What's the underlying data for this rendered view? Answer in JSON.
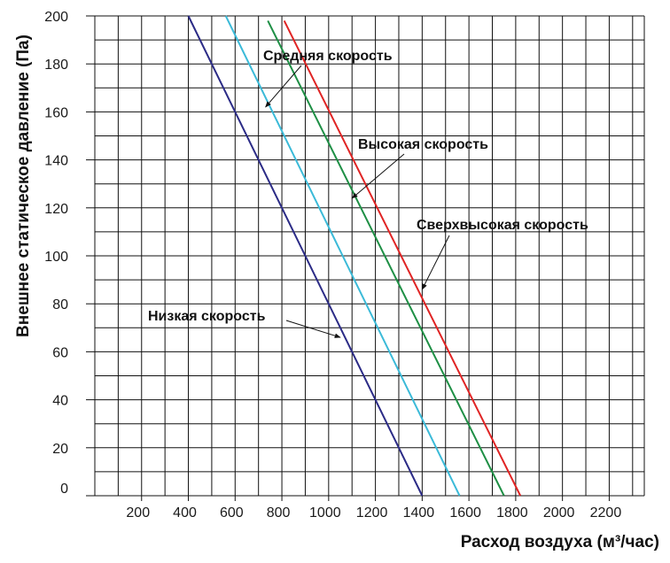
{
  "chart_data": {
    "type": "line",
    "xlabel": "Расход воздуха (м³/час)",
    "ylabel": "Внешнее статическое давление (Па)",
    "xlim": [
      0,
      2350
    ],
    "ylim": [
      0,
      200
    ],
    "xticks": [
      200,
      400,
      600,
      800,
      1000,
      1200,
      1400,
      1600,
      1800,
      2000,
      2200
    ],
    "yticks": [
      0,
      20,
      40,
      60,
      80,
      100,
      120,
      140,
      160,
      180,
      200
    ],
    "grid": true,
    "series": [
      {
        "name": "Низкая скорость",
        "color": "#2b2b86",
        "x": [
          400,
          1400
        ],
        "y": [
          200,
          0
        ]
      },
      {
        "name": "Средняя скорость",
        "color": "#3bbad8",
        "x": [
          560,
          1560
        ],
        "y": [
          200,
          0
        ]
      },
      {
        "name": "Высокая скорость",
        "color": "#1e8f45",
        "x": [
          740,
          1750
        ],
        "y": [
          198,
          0
        ]
      },
      {
        "name": "Сверхвысокая скорость",
        "color": "#e02424",
        "x": [
          810,
          1820
        ],
        "y": [
          198,
          0
        ]
      }
    ],
    "annotations": [
      {
        "text": "Средняя скорость",
        "target": [
          730,
          162
        ]
      },
      {
        "text": "Высокая скорость",
        "target": [
          1100,
          124
        ]
      },
      {
        "text": "Сверхвысокая скорость",
        "target": [
          1400,
          86
        ]
      },
      {
        "text": "Низкая скорость",
        "target": [
          1050,
          66
        ]
      }
    ]
  }
}
